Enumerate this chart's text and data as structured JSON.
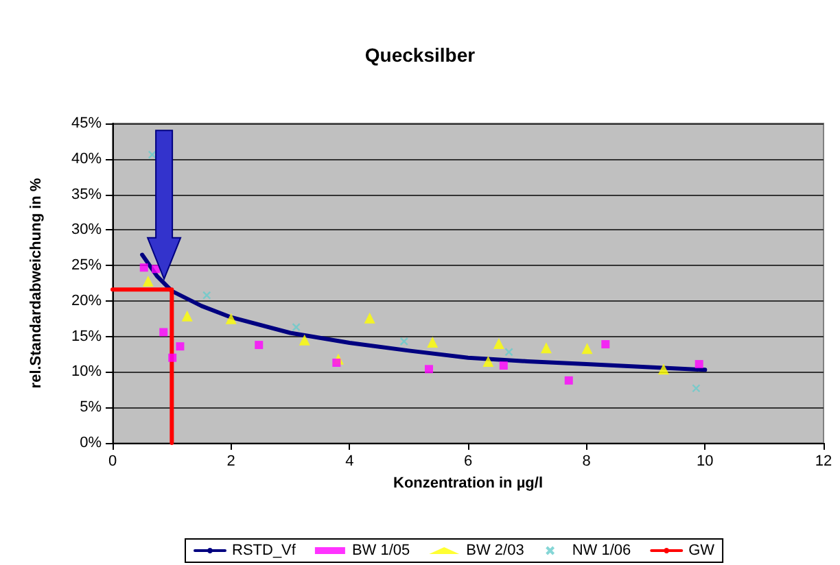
{
  "chart_data": {
    "type": "scatter",
    "title": "Quecksilber",
    "xlabel": "Konzentration in µg/l",
    "ylabel": "rel.Standardabweichung in %",
    "xlim": [
      0,
      12
    ],
    "xticks": [
      0,
      2,
      4,
      6,
      8,
      10,
      12
    ],
    "ylim": [
      0,
      45
    ],
    "yticks": [
      {
        "value": 0,
        "label": "0%"
      },
      {
        "value": 5,
        "label": "5%"
      },
      {
        "value": 10,
        "label": "10%"
      },
      {
        "value": 15,
        "label": "15%"
      },
      {
        "value": 20,
        "label": "20%"
      },
      {
        "value": 25,
        "label": "25%"
      },
      {
        "value": 30,
        "label": "30%"
      },
      {
        "value": 35,
        "label": "35%"
      },
      {
        "value": 40,
        "label": "40%"
      },
      {
        "value": 45,
        "label": "45%"
      }
    ],
    "grid": "y",
    "legend": "bottom",
    "series": [
      {
        "name": "RSTD_Vf",
        "type": "line",
        "marker": "none",
        "line_style": "solid",
        "color": "#000080",
        "x": [
          0.5,
          0.75,
          1,
          1.5,
          2,
          3,
          4,
          5,
          6,
          7,
          8,
          9,
          10
        ],
        "values": [
          26.5,
          23.5,
          21.4,
          19.3,
          17.7,
          15.5,
          14.1,
          13.0,
          12.0,
          11.5,
          11.1,
          10.7,
          10.3
        ]
      },
      {
        "name": "BW 1/05",
        "type": "scatter",
        "marker": "square",
        "color": "#ff00ff",
        "x": [
          0.53,
          0.73,
          0.86,
          1.14,
          1.01,
          2.47,
          3.78,
          5.34,
          6.6,
          7.7,
          8.32,
          9.9
        ],
        "values": [
          24.7,
          24.5,
          15.6,
          13.6,
          12.0,
          13.8,
          11.3,
          10.4,
          10.9,
          8.8,
          13.9,
          11.1
        ]
      },
      {
        "name": "BW 2/03",
        "type": "scatter",
        "marker": "triangle",
        "color": "#ffff00",
        "x": [
          0.6,
          1.26,
          2.0,
          3.24,
          3.81,
          4.34,
          5.4,
          6.34,
          6.52,
          7.32,
          8.01,
          9.3
        ],
        "values": [
          22.8,
          17.9,
          17.5,
          14.5,
          11.8,
          17.6,
          14.2,
          11.5,
          14.0,
          13.4,
          13.3,
          10.4
        ]
      },
      {
        "name": "NW 1/06",
        "type": "scatter",
        "marker": "cross",
        "color": "#66cccc",
        "x": [
          0.67,
          1.59,
          3.1,
          4.92,
          6.69,
          9.85
        ],
        "values": [
          40.6,
          20.8,
          16.3,
          14.3,
          12.8,
          7.7
        ]
      },
      {
        "name": "GW",
        "type": "line",
        "marker": "none",
        "line_style": "solid",
        "color": "#ff0000",
        "x": [
          0,
          1,
          1
        ],
        "values": [
          21.6,
          21.6,
          0
        ]
      }
    ]
  }
}
